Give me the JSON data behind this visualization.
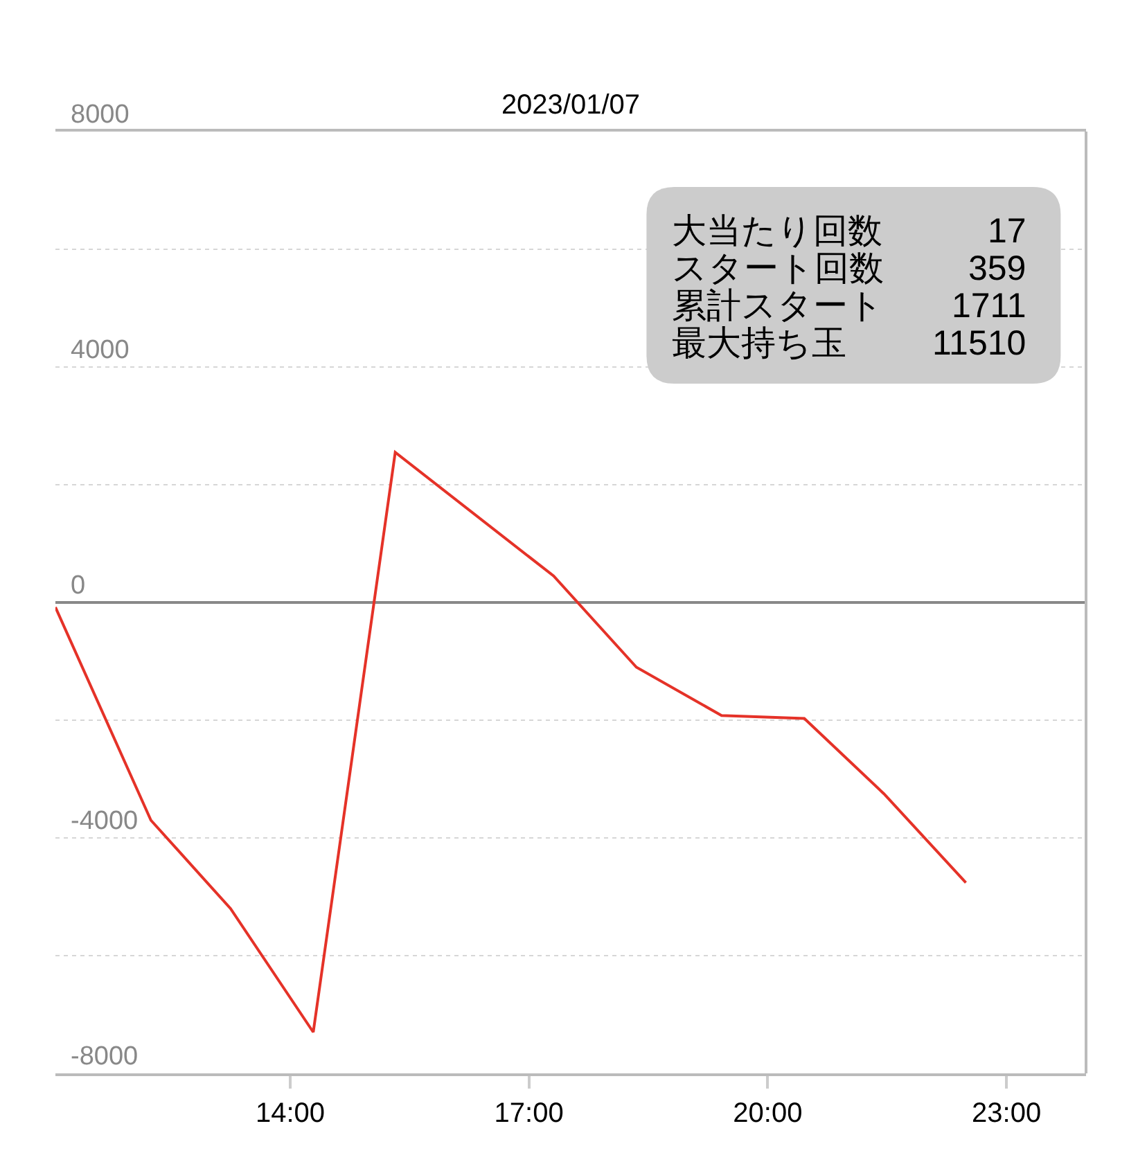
{
  "chart_data": {
    "type": "line",
    "title": "2023/01/07",
    "x": [
      11.05,
      12.25,
      13.25,
      14.29,
      15.32,
      17.31,
      18.35,
      19.42,
      20.46,
      21.46,
      22.49
    ],
    "series": [
      {
        "color": "#e53228",
        "values": [
          -80,
          -3700,
          -5200,
          -7300,
          2550,
          450,
          -1100,
          -1920,
          -1970,
          -3250,
          -4760
        ]
      }
    ],
    "xlim": [
      11.05,
      24
    ],
    "xticks": [
      {
        "value": 14,
        "label": "14:00"
      },
      {
        "value": 17,
        "label": "17:00"
      },
      {
        "value": 20,
        "label": "20:00"
      },
      {
        "value": 23,
        "label": "23:00"
      }
    ],
    "ylim": [
      -8000,
      8000
    ],
    "yticks": [
      8000,
      {
        "value": 6000,
        "label": null
      },
      4000,
      {
        "value": 2000,
        "label": null
      },
      0,
      {
        "value": -2000,
        "label": null
      },
      -4000,
      {
        "value": -6000,
        "label": null
      },
      -8000
    ],
    "grid": "y",
    "line_style": "solid",
    "annotations": [
      "大当たり回数",
      "17",
      "スタート回数",
      "359",
      "累計スタート",
      "1711",
      "最大持ち玉",
      "11510"
    ]
  }
}
